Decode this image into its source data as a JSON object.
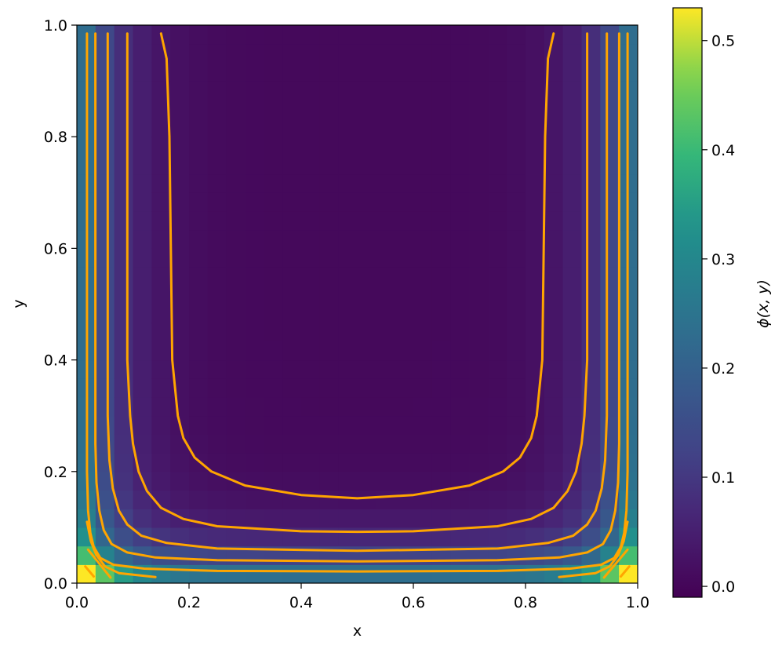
{
  "chart_data": {
    "type": "heatmap",
    "xlabel": "x",
    "ylabel": "y",
    "colorbar_label": "ϕ(x, y)",
    "xlim": [
      0.0,
      1.0
    ],
    "ylim": [
      0.0,
      1.0
    ],
    "color_range": [
      -0.01,
      0.53
    ],
    "colormap": "viridis",
    "contour_color": "#ffa500",
    "x_ticks": [
      {
        "value": 0.0,
        "label": "0.0"
      },
      {
        "value": 0.2,
        "label": "0.2"
      },
      {
        "value": 0.4,
        "label": "0.4"
      },
      {
        "value": 0.6,
        "label": "0.6"
      },
      {
        "value": 0.8,
        "label": "0.8"
      },
      {
        "value": 1.0,
        "label": "1.0"
      }
    ],
    "y_ticks": [
      {
        "value": 0.0,
        "label": "0.0"
      },
      {
        "value": 0.2,
        "label": "0.2"
      },
      {
        "value": 0.4,
        "label": "0.4"
      },
      {
        "value": 0.6,
        "label": "0.6"
      },
      {
        "value": 0.8,
        "label": "0.8"
      },
      {
        "value": 1.0,
        "label": "1.0"
      }
    ],
    "colorbar_ticks": [
      {
        "value": 0.0,
        "label": "0.0"
      },
      {
        "value": 0.1,
        "label": "0.1"
      },
      {
        "value": 0.2,
        "label": "0.2"
      },
      {
        "value": 0.3,
        "label": "0.3"
      },
      {
        "value": 0.4,
        "label": "0.4"
      },
      {
        "value": 0.5,
        "label": "0.5"
      }
    ],
    "contours": [
      {
        "level": 0.05,
        "points": [
          [
            0.15,
            0.985
          ],
          [
            0.16,
            0.94
          ],
          [
            0.165,
            0.8
          ],
          [
            0.17,
            0.4
          ],
          [
            0.18,
            0.3
          ],
          [
            0.19,
            0.26
          ],
          [
            0.21,
            0.225
          ],
          [
            0.24,
            0.2
          ],
          [
            0.3,
            0.175
          ],
          [
            0.4,
            0.158
          ],
          [
            0.5,
            0.152
          ],
          [
            0.6,
            0.158
          ],
          [
            0.7,
            0.175
          ],
          [
            0.76,
            0.2
          ],
          [
            0.79,
            0.225
          ],
          [
            0.81,
            0.26
          ],
          [
            0.82,
            0.3
          ],
          [
            0.83,
            0.4
          ],
          [
            0.835,
            0.8
          ],
          [
            0.84,
            0.94
          ],
          [
            0.85,
            0.985
          ]
        ]
      },
      {
        "level": 0.1,
        "points": [
          [
            0.09,
            0.985
          ],
          [
            0.09,
            0.9
          ],
          [
            0.09,
            0.4
          ],
          [
            0.095,
            0.3
          ],
          [
            0.1,
            0.25
          ],
          [
            0.11,
            0.2
          ],
          [
            0.125,
            0.165
          ],
          [
            0.15,
            0.135
          ],
          [
            0.19,
            0.115
          ],
          [
            0.25,
            0.102
          ],
          [
            0.4,
            0.093
          ],
          [
            0.5,
            0.092
          ],
          [
            0.6,
            0.093
          ],
          [
            0.75,
            0.102
          ],
          [
            0.81,
            0.115
          ],
          [
            0.85,
            0.135
          ],
          [
            0.875,
            0.165
          ],
          [
            0.89,
            0.2
          ],
          [
            0.9,
            0.25
          ],
          [
            0.905,
            0.3
          ],
          [
            0.91,
            0.4
          ],
          [
            0.91,
            0.9
          ],
          [
            0.91,
            0.985
          ]
        ]
      },
      {
        "level": 0.15,
        "points": [
          [
            0.055,
            0.985
          ],
          [
            0.055,
            0.9
          ],
          [
            0.055,
            0.3
          ],
          [
            0.058,
            0.22
          ],
          [
            0.064,
            0.17
          ],
          [
            0.075,
            0.13
          ],
          [
            0.09,
            0.105
          ],
          [
            0.115,
            0.085
          ],
          [
            0.16,
            0.072
          ],
          [
            0.25,
            0.062
          ],
          [
            0.5,
            0.058
          ],
          [
            0.75,
            0.062
          ],
          [
            0.84,
            0.072
          ],
          [
            0.885,
            0.085
          ],
          [
            0.91,
            0.105
          ],
          [
            0.925,
            0.13
          ],
          [
            0.936,
            0.17
          ],
          [
            0.942,
            0.22
          ],
          [
            0.945,
            0.3
          ],
          [
            0.945,
            0.9
          ],
          [
            0.945,
            0.985
          ]
        ]
      },
      {
        "level": 0.2,
        "points": [
          [
            0.033,
            0.985
          ],
          [
            0.033,
            0.9
          ],
          [
            0.033,
            0.25
          ],
          [
            0.035,
            0.18
          ],
          [
            0.04,
            0.13
          ],
          [
            0.048,
            0.095
          ],
          [
            0.062,
            0.07
          ],
          [
            0.09,
            0.055
          ],
          [
            0.14,
            0.046
          ],
          [
            0.25,
            0.041
          ],
          [
            0.5,
            0.039
          ],
          [
            0.75,
            0.041
          ],
          [
            0.86,
            0.046
          ],
          [
            0.91,
            0.055
          ],
          [
            0.938,
            0.07
          ],
          [
            0.952,
            0.095
          ],
          [
            0.96,
            0.13
          ],
          [
            0.965,
            0.18
          ],
          [
            0.967,
            0.25
          ],
          [
            0.967,
            0.9
          ],
          [
            0.967,
            0.985
          ]
        ]
      },
      {
        "level": 0.25,
        "points": [
          [
            0.018,
            0.985
          ],
          [
            0.018,
            0.9
          ],
          [
            0.018,
            0.2
          ],
          [
            0.02,
            0.13
          ],
          [
            0.024,
            0.09
          ],
          [
            0.03,
            0.065
          ],
          [
            0.042,
            0.045
          ],
          [
            0.065,
            0.033
          ],
          [
            0.12,
            0.026
          ],
          [
            0.25,
            0.022
          ],
          [
            0.5,
            0.021
          ],
          [
            0.75,
            0.022
          ],
          [
            0.88,
            0.026
          ],
          [
            0.935,
            0.033
          ],
          [
            0.958,
            0.045
          ],
          [
            0.97,
            0.065
          ],
          [
            0.976,
            0.09
          ],
          [
            0.98,
            0.13
          ],
          [
            0.982,
            0.2
          ],
          [
            0.982,
            0.9
          ],
          [
            0.982,
            0.985
          ]
        ]
      },
      {
        "level": 0.3,
        "points": [
          [
            0.018,
            0.11
          ],
          [
            0.025,
            0.075
          ],
          [
            0.035,
            0.05
          ],
          [
            0.05,
            0.03
          ],
          [
            0.075,
            0.018
          ],
          [
            0.14,
            0.011
          ]
        ]
      },
      {
        "level": 0.3,
        "points": [
          [
            0.86,
            0.011
          ],
          [
            0.925,
            0.018
          ],
          [
            0.95,
            0.03
          ],
          [
            0.965,
            0.05
          ],
          [
            0.975,
            0.075
          ],
          [
            0.982,
            0.11
          ]
        ]
      },
      {
        "level": 0.35,
        "points": [
          [
            0.02,
            0.06
          ],
          [
            0.06,
            0.01
          ]
        ]
      },
      {
        "level": 0.35,
        "points": [
          [
            0.94,
            0.01
          ],
          [
            0.982,
            0.06
          ]
        ]
      },
      {
        "level": 0.4,
        "points": [
          [
            0.015,
            0.03
          ],
          [
            0.03,
            0.012
          ]
        ]
      },
      {
        "level": 0.4,
        "points": [
          [
            0.97,
            0.012
          ],
          [
            0.985,
            0.03
          ]
        ]
      }
    ]
  }
}
